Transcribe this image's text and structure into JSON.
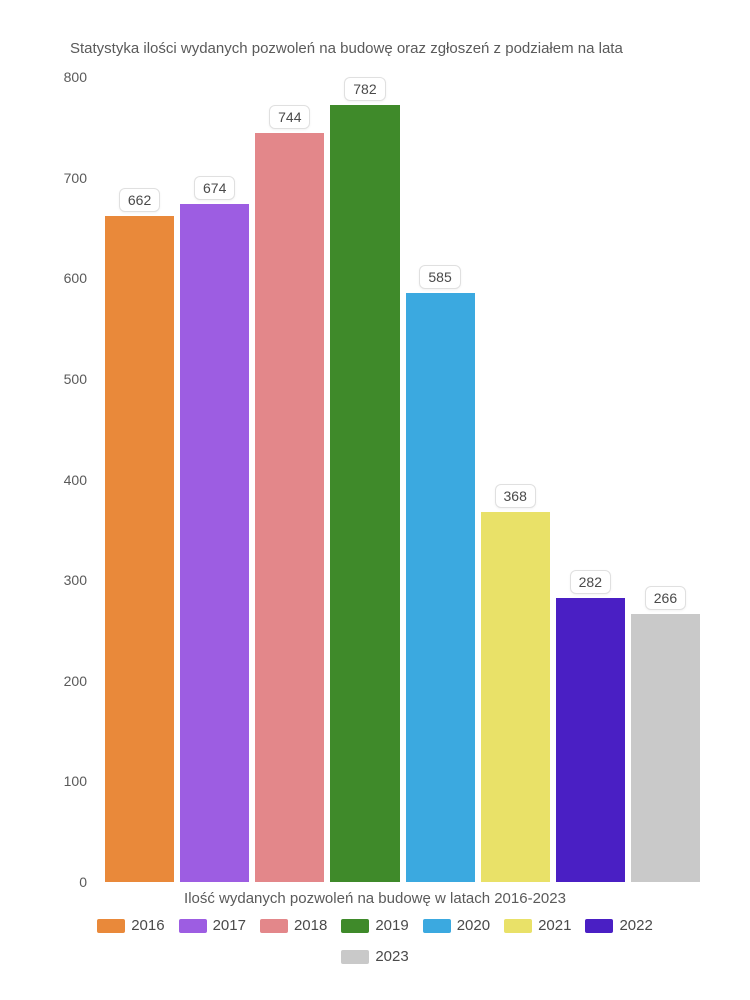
{
  "chart": {
    "type": "bar",
    "title": "Statystyka ilości wydanych pozwoleń na budowę oraz zgłoszeń z podziałem na lata",
    "x_label": "Ilość wydanych pozwoleń na budowę w latach 2016-2023",
    "ylim_max": 800,
    "ylim_min": 0,
    "y_ticks": [
      0,
      100,
      200,
      300,
      400,
      500,
      600,
      700,
      800
    ],
    "background_color": "#ffffff",
    "title_fontsize": 15,
    "label_fontsize": 15,
    "tick_fontsize": 14,
    "value_label_fontsize": 14,
    "bars": [
      {
        "year": "2016",
        "value": 662,
        "color": "#e9893a"
      },
      {
        "year": "2017",
        "value": 674,
        "color": "#9d5de2"
      },
      {
        "year": "2018",
        "value": 744,
        "color": "#e3878a"
      },
      {
        "year": "2019",
        "value": 782,
        "color": "#3f8a2a"
      },
      {
        "year": "2020",
        "value": 585,
        "color": "#3ba9e0"
      },
      {
        "year": "2021",
        "value": 368,
        "color": "#e9e168"
      },
      {
        "year": "2022",
        "value": 282,
        "color": "#4a1fc4"
      },
      {
        "year": "2023",
        "value": 266,
        "color": "#c9c9c9"
      }
    ]
  }
}
